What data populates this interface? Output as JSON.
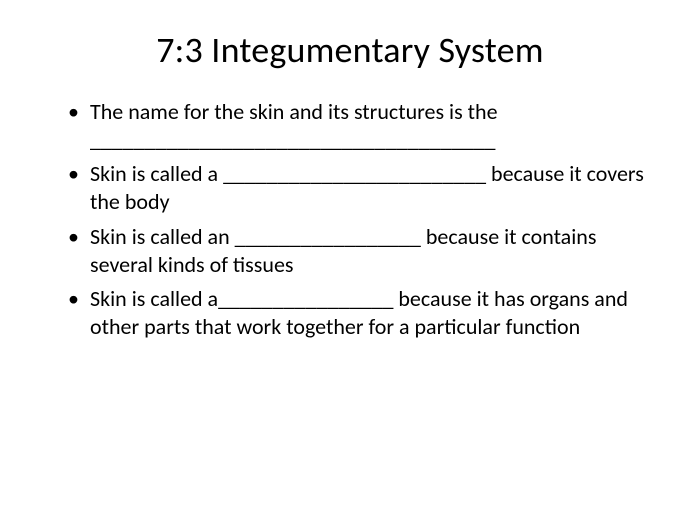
{
  "title": "7:3 Integumentary System",
  "title_fontsize": 36,
  "body_fontsize": 22,
  "text_color": "#000000",
  "background_color": "#ffffff",
  "bullets": [
    "The name for the skin and its structures is the _____________________________________",
    "Skin is called a ________________________ because it covers\nthe body",
    "Skin is called an _________________  because it contains several kinds of tissues",
    "Skin  is called a________________ because it has organs and other parts that work together for a particular function"
  ]
}
